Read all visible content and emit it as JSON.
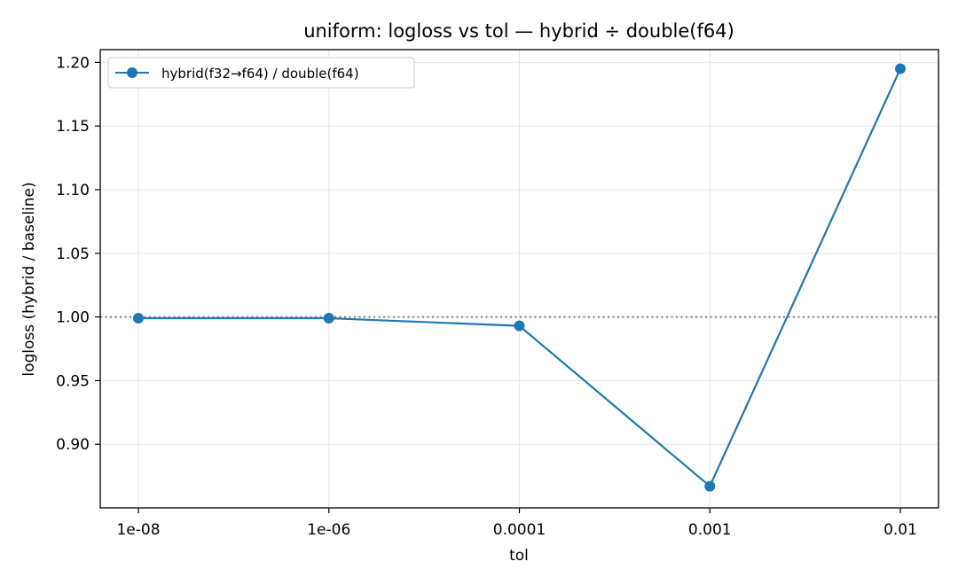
{
  "chart_data": {
    "type": "line",
    "title": "uniform: logloss vs tol — hybrid ÷ double(f64)",
    "xlabel": "tol",
    "ylabel": "logloss (hybrid / baseline)",
    "categories": [
      "1e-08",
      "1e-06",
      "0.0001",
      "0.001",
      "0.01"
    ],
    "series": [
      {
        "name": "hybrid(f32→f64) / double(f64)",
        "values": [
          0.999,
          0.999,
          0.993,
          0.867,
          1.195
        ],
        "color": "#1f77b4",
        "marker": "circle"
      }
    ],
    "reference_line": {
      "y": 1.0,
      "style": "dotted",
      "color": "#808080"
    },
    "ylim": [
      0.85,
      1.21
    ],
    "yticks": [
      "0.90",
      "0.95",
      "1.00",
      "1.05",
      "1.10",
      "1.15",
      "1.20"
    ],
    "grid": true,
    "legend_position": "top-left"
  }
}
